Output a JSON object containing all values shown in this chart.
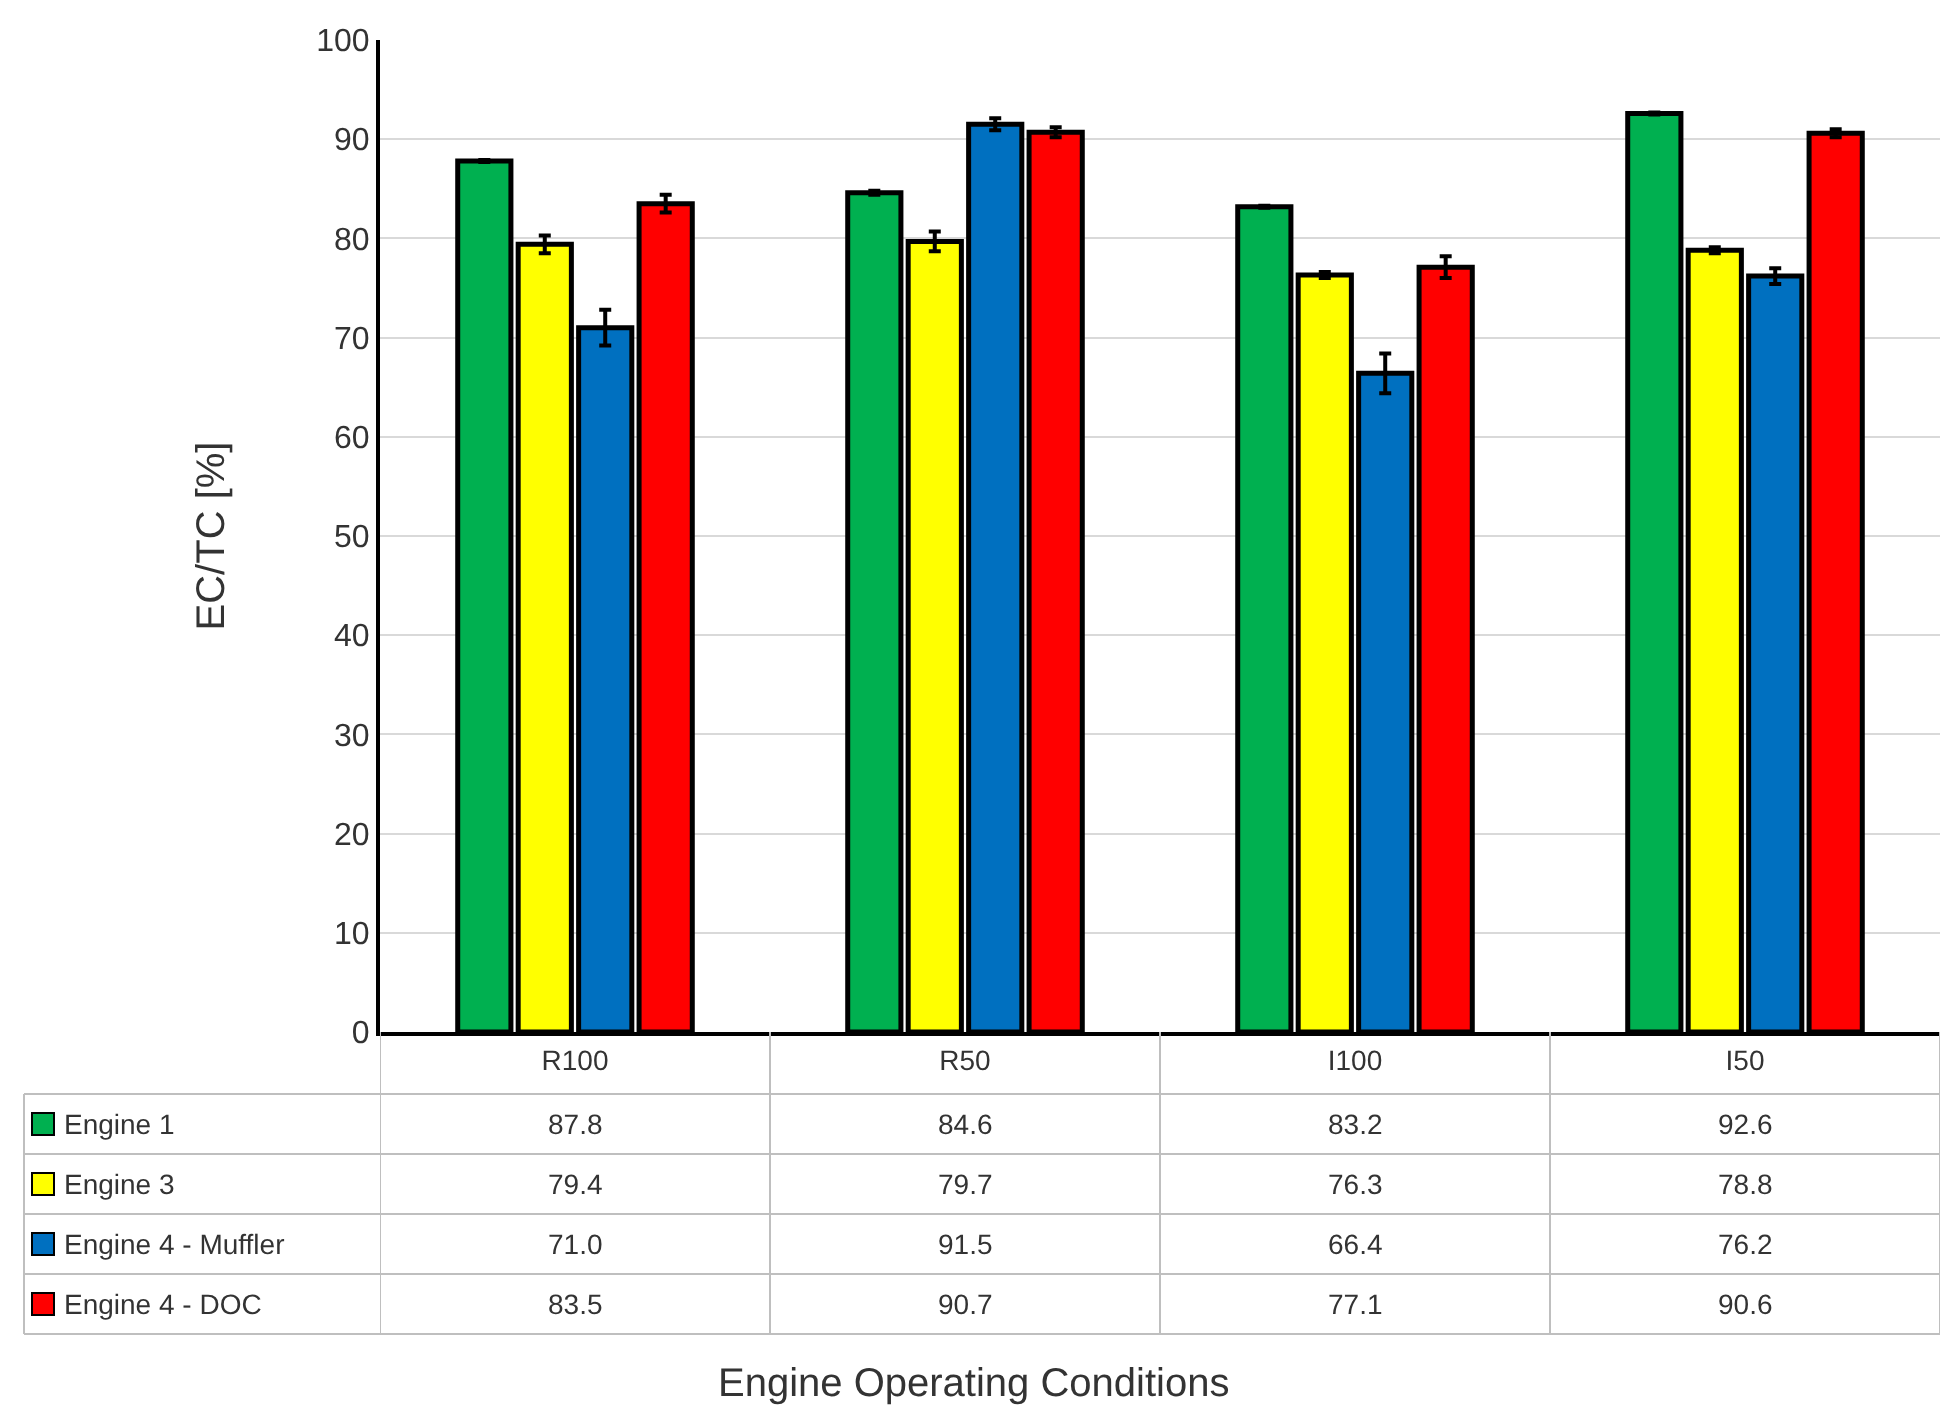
{
  "chart_data": {
    "type": "bar",
    "annotations": [
      "Engine Operating Conditions"
    ],
    "ylabel": "EC/TC [%]",
    "legend": "bottom left",
    "categories": [
      "R100",
      "R50",
      "I100",
      "I50"
    ],
    "series": [
      {
        "name": "Engine 1",
        "color": "#00b050",
        "values": [
          87.8,
          84.6,
          83.2,
          92.6
        ],
        "errors": [
          0.1,
          0.2,
          0.1,
          0.1
        ],
        "value_labels": [
          "87.8",
          "84.6",
          "83.2",
          "92.6"
        ]
      },
      {
        "name": "Engine 3",
        "color": "#ffff00",
        "values": [
          79.4,
          79.7,
          76.3,
          78.8
        ],
        "errors": [
          0.9,
          1.0,
          0.3,
          0.3
        ],
        "value_labels": [
          "79.4",
          "79.7",
          "76.3",
          "78.8"
        ]
      },
      {
        "name": "Engine 4 - Muffler",
        "color": "#0070c0",
        "values": [
          71.0,
          91.5,
          66.4,
          76.2
        ],
        "errors": [
          1.8,
          0.6,
          2.0,
          0.8
        ],
        "value_labels": [
          "71.0",
          "91.5",
          "66.4",
          "76.2"
        ]
      },
      {
        "name": "Engine 4 - DOC",
        "color": "#ff0000",
        "values": [
          83.5,
          90.7,
          77.1,
          90.6
        ],
        "errors": [
          0.9,
          0.5,
          1.1,
          0.4
        ],
        "value_labels": [
          "83.5",
          "90.7",
          "77.1",
          "90.6"
        ]
      }
    ],
    "ylim": [
      0,
      100
    ],
    "yticks": [
      0,
      10,
      20,
      30,
      40,
      50,
      60,
      70,
      80,
      90,
      100
    ],
    "grid": "y"
  }
}
